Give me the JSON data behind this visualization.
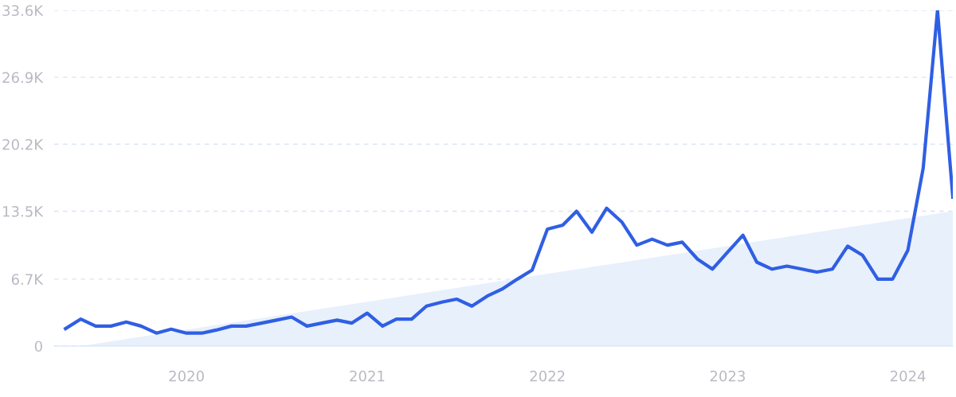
{
  "chart_data": {
    "type": "line",
    "x": [
      "2019-05",
      "2019-06",
      "2019-07",
      "2019-08",
      "2019-09",
      "2019-10",
      "2019-11",
      "2019-12",
      "2020-01",
      "2020-02",
      "2020-03",
      "2020-04",
      "2020-05",
      "2020-06",
      "2020-07",
      "2020-08",
      "2020-09",
      "2020-10",
      "2020-11",
      "2020-12",
      "2021-01",
      "2021-02",
      "2021-03",
      "2021-04",
      "2021-05",
      "2021-06",
      "2021-07",
      "2021-08",
      "2021-09",
      "2021-10",
      "2021-11",
      "2021-12",
      "2022-01",
      "2022-02",
      "2022-03",
      "2022-04",
      "2022-05",
      "2022-06",
      "2022-07",
      "2022-08",
      "2022-09",
      "2022-10",
      "2022-11",
      "2022-12",
      "2023-01",
      "2023-02",
      "2023-03",
      "2023-04",
      "2023-05",
      "2023-06",
      "2023-07",
      "2023-08",
      "2023-09",
      "2023-10",
      "2023-11",
      "2023-12",
      "2024-01",
      "2024-02",
      "2024-03",
      "2024-04"
    ],
    "series": [
      {
        "type": "area",
        "color": "#e8f0fc",
        "x": [
          "2019-06",
          "2024-04"
        ],
        "values": [
          0,
          13500
        ]
      },
      {
        "color": "#2f5fe3",
        "values": [
          1750,
          2700,
          2000,
          2000,
          2400,
          2000,
          1300,
          1700,
          1300,
          1300,
          1600,
          2000,
          2000,
          2300,
          2600,
          2900,
          2000,
          2300,
          2600,
          2300,
          3300,
          2000,
          2700,
          2700,
          4000,
          4400,
          4700,
          4000,
          5000,
          5700,
          6700,
          7600,
          11700,
          12100,
          13500,
          11400,
          13800,
          12400,
          10100,
          10700,
          10100,
          10400,
          8700,
          7700,
          9400,
          11100,
          8400,
          7700,
          8000,
          7700,
          7400,
          7700,
          10000,
          9100,
          6700,
          6700,
          9600,
          17800,
          33600,
          14900
        ]
      }
    ],
    "xlim": [
      "2019-04-08",
      "2024-04-01"
    ],
    "xticks": [
      {
        "value": "2020-01",
        "label": "2020"
      },
      {
        "value": "2021-01",
        "label": "2021"
      },
      {
        "value": "2022-01",
        "label": "2022"
      },
      {
        "value": "2023-01",
        "label": "2023"
      },
      {
        "value": "2024-01",
        "label": "2024"
      }
    ],
    "ylim": [
      0,
      33600
    ],
    "yticks": [
      {
        "value": 0,
        "label": "0"
      },
      {
        "value": 6700,
        "label": "6.7K"
      },
      {
        "value": 13500,
        "label": "13.5K"
      },
      {
        "value": 20200,
        "label": "20.2K"
      },
      {
        "value": 26900,
        "label": "26.9K"
      },
      {
        "value": 33600,
        "label": "33.6K"
      }
    ],
    "grid": "y",
    "line_style": "solid",
    "marker": "none"
  }
}
